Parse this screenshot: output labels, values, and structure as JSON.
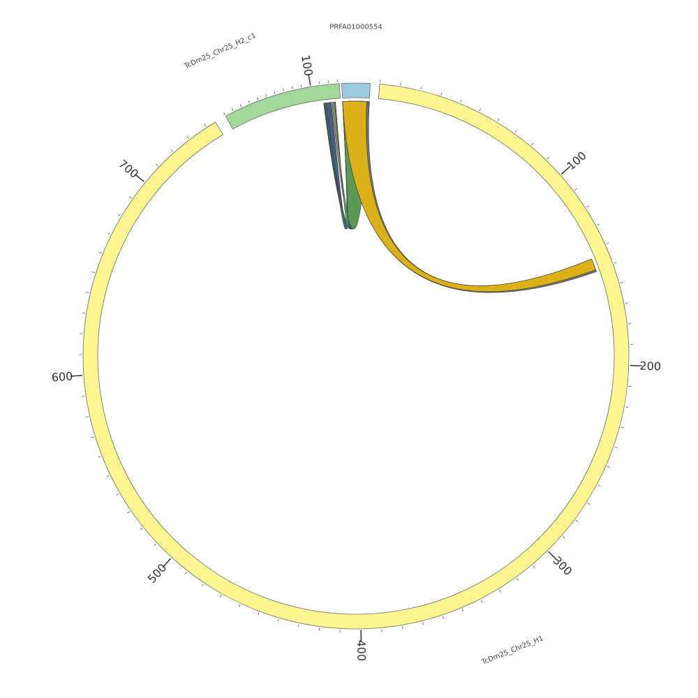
{
  "title": "",
  "chart_data": {
    "type": "circos",
    "unit_ticks": 10,
    "segments": [
      {
        "id": "PRFA01000554",
        "label": "PRFA01000554",
        "length": 10,
        "start_angle": -3,
        "end_angle": 3,
        "color": "#9ecae1",
        "major_ticks": []
      },
      {
        "id": "TcDm25_Chr25_H1",
        "label": "TcDm25_Chr25_H1",
        "length": 745,
        "start_angle": 5,
        "end_angle": 329,
        "color": "#fff68f",
        "major_ticks": [
          100,
          200,
          300,
          400,
          500,
          600,
          700
        ]
      },
      {
        "id": "TcDm25_Chr25_H2_c1",
        "label": "TcDm25_Chr25_H2_c1",
        "length": 132,
        "start_angle": 331.5,
        "end_angle": 356.5,
        "color": "#a1d99b",
        "major_ticks": [
          100
        ]
      }
    ],
    "links": [
      {
        "color": "#555566",
        "a": {
          "segment": "PRFA01000554",
          "from": 0,
          "to": 10
        },
        "b": {
          "segment": "TcDm25_Chr25_H2_c1",
          "from": 112,
          "to": 121
        }
      },
      {
        "color": "#2c7f61",
        "a": {
          "segment": "PRFA01000554",
          "from": 0,
          "to": 10
        },
        "b": {
          "segment": "TcDm25_Chr25_H2_c1",
          "from": 113,
          "to": 116
        }
      },
      {
        "color": "#4a5a8c",
        "a": {
          "segment": "PRFA01000554",
          "from": 0,
          "to": 10
        },
        "b": {
          "segment": "TcDm25_Chr25_H2_c1",
          "from": 115,
          "to": 121
        }
      },
      {
        "color": "#7a8c5a",
        "a": {
          "segment": "PRFA01000554",
          "from": 0,
          "to": 10
        },
        "b": {
          "segment": "TcDm25_Chr25_H2_c1",
          "from": 122,
          "to": 126
        }
      },
      {
        "color": "#5a9a55",
        "a": {
          "segment": "PRFA01000554",
          "from": 0,
          "to": 10
        },
        "b": {
          "segment": "TcDm25_Chr25_H2_c1",
          "from": 125,
          "to": 126
        }
      },
      {
        "color": "#6e6e6e",
        "a": {
          "segment": "PRFA01000554",
          "from": 0,
          "to": 10
        },
        "b": {
          "segment": "TcDm25_Chr25_H1",
          "from": 144,
          "to": 151
        }
      },
      {
        "color": "#e0b412",
        "a": {
          "segment": "PRFA01000554",
          "from": 0,
          "to": 9
        },
        "b": {
          "segment": "TcDm25_Chr25_H1",
          "from": 144,
          "to": 150
        }
      }
    ]
  }
}
